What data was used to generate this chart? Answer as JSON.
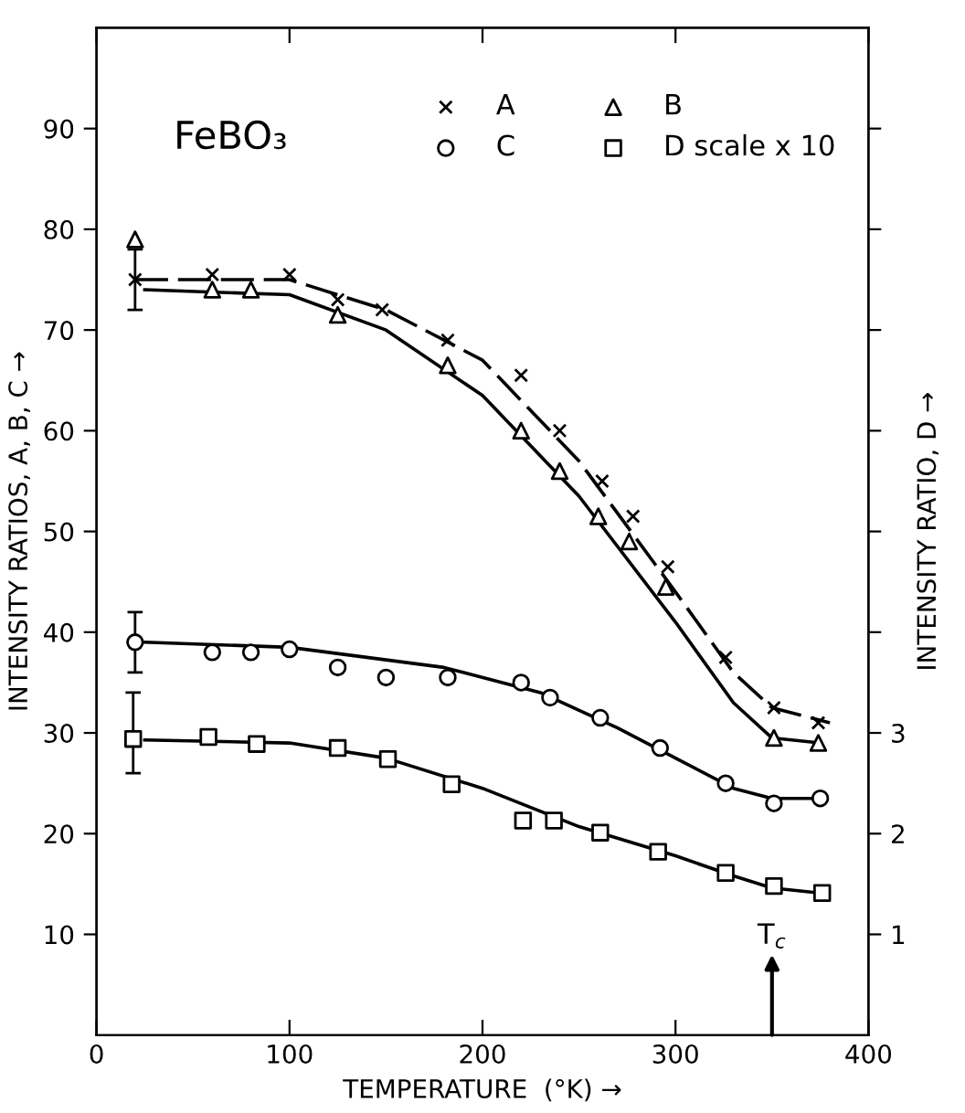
{
  "chart_data": {
    "type": "scatter",
    "title": "FeBO₃",
    "xlabel": "TEMPERATURE  (°K) →",
    "ylabel": "INTENSITY RATIOS, A, B, C →",
    "y2label": "INTENSITY RATIO, D →",
    "xlim": [
      0,
      400
    ],
    "xticks": [
      0,
      100,
      200,
      300,
      400
    ],
    "ylim": [
      0,
      100
    ],
    "yticks": [
      10,
      20,
      30,
      40,
      50,
      60,
      70,
      80,
      90
    ],
    "y2lim": [
      0,
      10
    ],
    "y2ticks": [
      1,
      2,
      3,
      {
        "value": 4,
        "label": null
      },
      {
        "value": 5,
        "label": null
      },
      {
        "value": 6,
        "label": null
      },
      {
        "value": 7,
        "label": null
      },
      {
        "value": 8,
        "label": null
      },
      {
        "value": 9,
        "label": null
      }
    ],
    "grid": false,
    "legend": "top right",
    "annotations": [
      "T$_{c}$"
    ],
    "series": [
      {
        "name": "A",
        "color": "#000000",
        "marker": "cross",
        "x": [
          20,
          60,
          100,
          125,
          148,
          182,
          220,
          240,
          262,
          278,
          296,
          326,
          351,
          374
        ],
        "values": [
          75,
          75.5,
          75.5,
          73,
          72,
          69,
          65.5,
          60,
          55,
          51.5,
          46.5,
          37.5,
          32.5,
          31
        ],
        "errors": [
          [
            72,
            78
          ],
          null,
          null,
          null,
          null,
          null,
          null,
          null,
          null,
          null,
          null,
          null,
          null,
          null
        ]
      },
      {
        "name": "B",
        "color": "#000000",
        "marker": "triangle",
        "x": [
          20,
          60,
          80,
          125,
          182,
          220,
          240,
          260,
          276,
          295,
          351,
          374
        ],
        "values": [
          79,
          74,
          74,
          71.5,
          66.5,
          60,
          56,
          51.5,
          49,
          44.5,
          29.5,
          29
        ]
      },
      {
        "name": "C",
        "color": "#000000",
        "marker": "circle",
        "x": [
          20,
          60,
          80,
          100,
          125,
          150,
          182,
          220,
          235,
          261,
          292,
          326,
          351,
          375
        ],
        "values": [
          39,
          38,
          38,
          38.3,
          36.5,
          35.5,
          35.5,
          35,
          33.5,
          31.5,
          28.5,
          25,
          23,
          23.5
        ],
        "errors": [
          [
            36,
            42
          ],
          null,
          null,
          null,
          null,
          null,
          null,
          null,
          null,
          null,
          null,
          null,
          null,
          null
        ]
      },
      {
        "name": "D scale x 10",
        "color": "#000000",
        "marker": "square",
        "axis": "y2",
        "x": [
          19,
          58,
          83,
          125,
          151,
          184,
          221,
          237,
          261,
          291,
          326,
          351,
          376
        ],
        "values": [
          2.94,
          2.96,
          2.89,
          2.85,
          2.74,
          2.49,
          2.13,
          2.13,
          2.01,
          1.82,
          1.61,
          1.48,
          1.41
        ],
        "errors": [
          [
            2.6,
            3.4
          ],
          null,
          null,
          null,
          null,
          null,
          null,
          null,
          null,
          null,
          null,
          null,
          null
        ]
      },
      {
        "type": "line",
        "color": "#000000",
        "line_style": "dashed",
        "x": [
          20,
          100,
          150,
          200,
          250,
          300,
          330,
          350,
          380
        ],
        "values": [
          75,
          75,
          72,
          67,
          57,
          44,
          36,
          32.5,
          31
        ]
      },
      {
        "type": "line",
        "color": "#000000",
        "line_style": "solid",
        "x": [
          25,
          100,
          150,
          200,
          250,
          300,
          330,
          350,
          375
        ],
        "values": [
          74,
          73.5,
          70,
          63.5,
          53.5,
          41,
          33,
          29.5,
          29
        ]
      },
      {
        "type": "line",
        "color": "#000000",
        "line_style": "solid",
        "x": [
          25,
          100,
          180,
          230,
          270,
          300,
          330,
          350,
          375
        ],
        "values": [
          39,
          38.5,
          36.5,
          34,
          30.5,
          27.5,
          24.5,
          23.5,
          23.5
        ]
      },
      {
        "type": "line",
        "color": "#000000",
        "line_style": "solid",
        "axis": "y2",
        "x": [
          25,
          100,
          150,
          200,
          250,
          300,
          330,
          350,
          375
        ],
        "values": [
          2.93,
          2.9,
          2.75,
          2.45,
          2.07,
          1.78,
          1.58,
          1.46,
          1.41
        ]
      }
    ]
  }
}
